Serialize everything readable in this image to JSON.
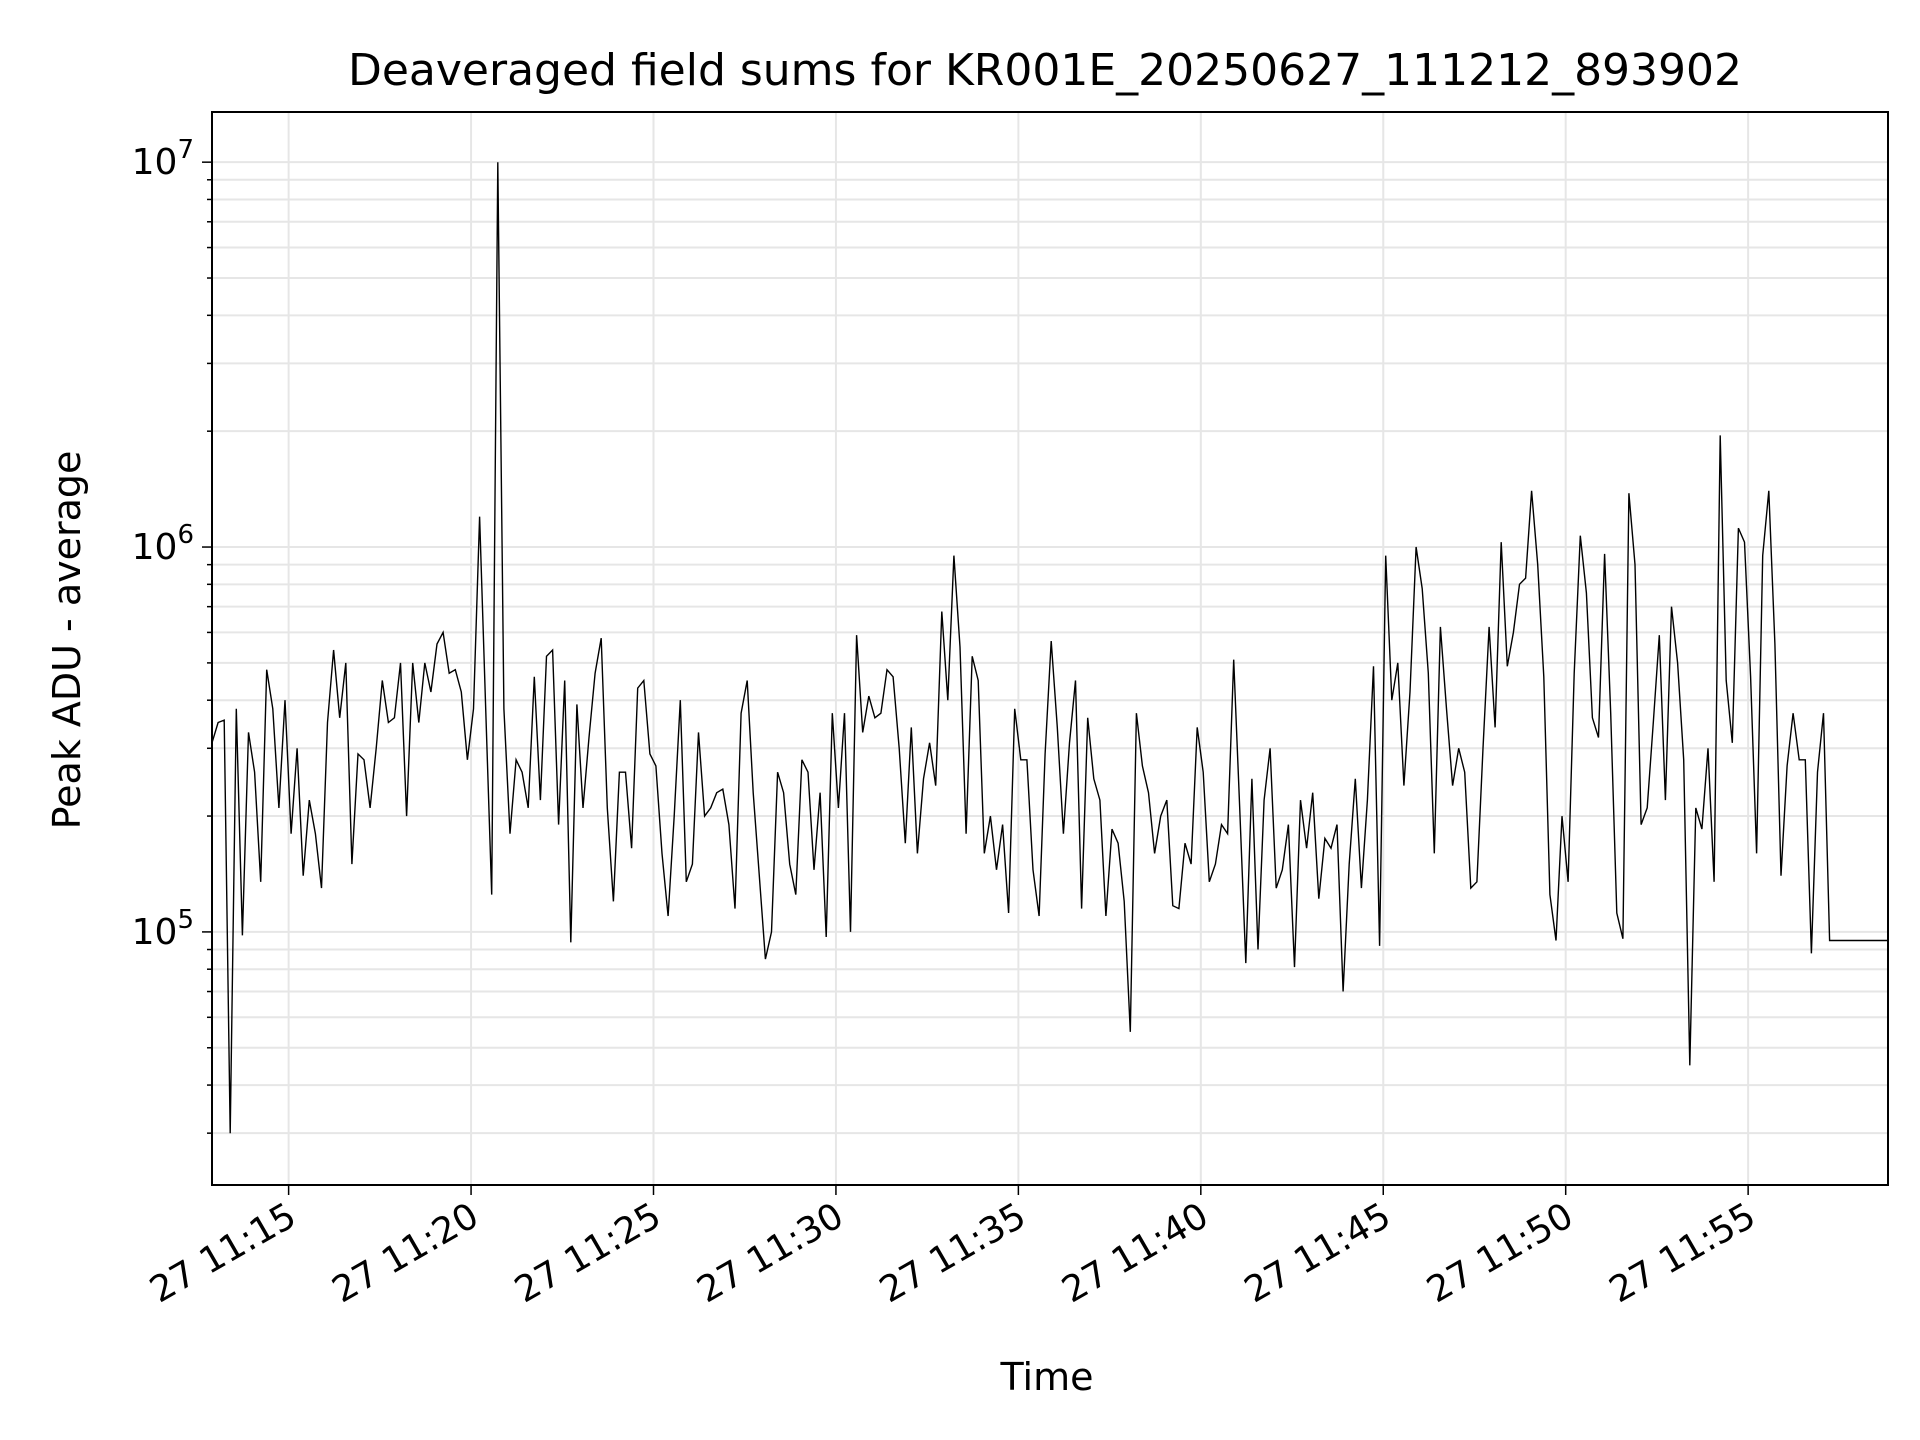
{
  "chart_data": {
    "type": "line",
    "title": "Deaveraged field sums for KR001E_20250627_111212_893902",
    "xlabel": "Time",
    "ylabel": "Peak ADU - average",
    "y_scale": "log",
    "ylim": [
      22000,
      13500000
    ],
    "xlim": [
      "2025-06-27 11:12:54",
      "2025-06-27 11:58:50"
    ],
    "grid": true,
    "line_color": "#000000",
    "grid_color": "#e6e6e6",
    "x_ticks": [
      {
        "time": "2025-06-27 11:15:00",
        "label": "27 11:15"
      },
      {
        "time": "2025-06-27 11:20:00",
        "label": "27 11:20"
      },
      {
        "time": "2025-06-27 11:25:00",
        "label": "27 11:25"
      },
      {
        "time": "2025-06-27 11:30:00",
        "label": "27 11:30"
      },
      {
        "time": "2025-06-27 11:35:00",
        "label": "27 11:35"
      },
      {
        "time": "2025-06-27 11:40:00",
        "label": "27 11:40"
      },
      {
        "time": "2025-06-27 11:45:00",
        "label": "27 11:45"
      },
      {
        "time": "2025-06-27 11:50:00",
        "label": "27 11:50"
      },
      {
        "time": "2025-06-27 11:55:00",
        "label": "27 11:55"
      }
    ],
    "y_ticks": [
      {
        "value": 100000,
        "base": "10",
        "exp": "5"
      },
      {
        "value": 1000000,
        "base": "10",
        "exp": "6"
      },
      {
        "value": 10000000,
        "base": "10",
        "exp": "7"
      }
    ],
    "series": [
      {
        "x": [
          "2025-06-27 11:12:54",
          "2025-06-27 11:13:04",
          "2025-06-27 11:13:14",
          "2025-06-27 11:13:24",
          "2025-06-27 11:13:34",
          "2025-06-27 11:13:44",
          "2025-06-27 11:13:54",
          "2025-06-27 11:14:04",
          "2025-06-27 11:14:14",
          "2025-06-27 11:14:24",
          "2025-06-27 11:14:34",
          "2025-06-27 11:14:44",
          "2025-06-27 11:14:54",
          "2025-06-27 11:15:04",
          "2025-06-27 11:15:14",
          "2025-06-27 11:15:24",
          "2025-06-27 11:15:34",
          "2025-06-27 11:15:44",
          "2025-06-27 11:15:54",
          "2025-06-27 11:16:04",
          "2025-06-27 11:16:14",
          "2025-06-27 11:16:24",
          "2025-06-27 11:16:34",
          "2025-06-27 11:16:44",
          "2025-06-27 11:16:54",
          "2025-06-27 11:17:04",
          "2025-06-27 11:17:14",
          "2025-06-27 11:17:24",
          "2025-06-27 11:17:34",
          "2025-06-27 11:17:44",
          "2025-06-27 11:17:54",
          "2025-06-27 11:18:04",
          "2025-06-27 11:18:14",
          "2025-06-27 11:18:24",
          "2025-06-27 11:18:34",
          "2025-06-27 11:18:44",
          "2025-06-27 11:18:54",
          "2025-06-27 11:19:04",
          "2025-06-27 11:19:14",
          "2025-06-27 11:19:24",
          "2025-06-27 11:19:34",
          "2025-06-27 11:19:44",
          "2025-06-27 11:19:54",
          "2025-06-27 11:20:04",
          "2025-06-27 11:20:14",
          "2025-06-27 11:20:24",
          "2025-06-27 11:20:34",
          "2025-06-27 11:20:44",
          "2025-06-27 11:20:54",
          "2025-06-27 11:21:04",
          "2025-06-27 11:21:14",
          "2025-06-27 11:21:24",
          "2025-06-27 11:21:34",
          "2025-06-27 11:21:44",
          "2025-06-27 11:21:54",
          "2025-06-27 11:22:04",
          "2025-06-27 11:22:14",
          "2025-06-27 11:22:24",
          "2025-06-27 11:22:34",
          "2025-06-27 11:22:44",
          "2025-06-27 11:22:54",
          "2025-06-27 11:23:04",
          "2025-06-27 11:23:14",
          "2025-06-27 11:23:24",
          "2025-06-27 11:23:34",
          "2025-06-27 11:23:44",
          "2025-06-27 11:23:54",
          "2025-06-27 11:24:04",
          "2025-06-27 11:24:14",
          "2025-06-27 11:24:24",
          "2025-06-27 11:24:34",
          "2025-06-27 11:24:44",
          "2025-06-27 11:24:54",
          "2025-06-27 11:25:04",
          "2025-06-27 11:25:14",
          "2025-06-27 11:25:24",
          "2025-06-27 11:25:34",
          "2025-06-27 11:25:44",
          "2025-06-27 11:25:54",
          "2025-06-27 11:26:04",
          "2025-06-27 11:26:14",
          "2025-06-27 11:26:24",
          "2025-06-27 11:26:34",
          "2025-06-27 11:26:44",
          "2025-06-27 11:26:54",
          "2025-06-27 11:27:04",
          "2025-06-27 11:27:14",
          "2025-06-27 11:27:24",
          "2025-06-27 11:27:34",
          "2025-06-27 11:27:44",
          "2025-06-27 11:27:54",
          "2025-06-27 11:28:04",
          "2025-06-27 11:28:14",
          "2025-06-27 11:28:24",
          "2025-06-27 11:28:34",
          "2025-06-27 11:28:44",
          "2025-06-27 11:28:54",
          "2025-06-27 11:29:04",
          "2025-06-27 11:29:14",
          "2025-06-27 11:29:24",
          "2025-06-27 11:29:34",
          "2025-06-27 11:29:44",
          "2025-06-27 11:29:54",
          "2025-06-27 11:30:04",
          "2025-06-27 11:30:14",
          "2025-06-27 11:30:24",
          "2025-06-27 11:30:34",
          "2025-06-27 11:30:44",
          "2025-06-27 11:30:54",
          "2025-06-27 11:31:04",
          "2025-06-27 11:31:14",
          "2025-06-27 11:31:24",
          "2025-06-27 11:31:34",
          "2025-06-27 11:31:44",
          "2025-06-27 11:31:54",
          "2025-06-27 11:32:04",
          "2025-06-27 11:32:14",
          "2025-06-27 11:32:24",
          "2025-06-27 11:32:34",
          "2025-06-27 11:32:44",
          "2025-06-27 11:32:54",
          "2025-06-27 11:33:04",
          "2025-06-27 11:33:14",
          "2025-06-27 11:33:24",
          "2025-06-27 11:33:34",
          "2025-06-27 11:33:44",
          "2025-06-27 11:33:54",
          "2025-06-27 11:34:04",
          "2025-06-27 11:34:14",
          "2025-06-27 11:34:24",
          "2025-06-27 11:34:34",
          "2025-06-27 11:34:44",
          "2025-06-27 11:34:54",
          "2025-06-27 11:35:04",
          "2025-06-27 11:35:14",
          "2025-06-27 11:35:24",
          "2025-06-27 11:35:34",
          "2025-06-27 11:35:44",
          "2025-06-27 11:35:54",
          "2025-06-27 11:36:04",
          "2025-06-27 11:36:14",
          "2025-06-27 11:36:24",
          "2025-06-27 11:36:34",
          "2025-06-27 11:36:44",
          "2025-06-27 11:36:54",
          "2025-06-27 11:37:04",
          "2025-06-27 11:37:14",
          "2025-06-27 11:37:24",
          "2025-06-27 11:37:34",
          "2025-06-27 11:37:44",
          "2025-06-27 11:37:54",
          "2025-06-27 11:38:04",
          "2025-06-27 11:38:14",
          "2025-06-27 11:38:24",
          "2025-06-27 11:38:34",
          "2025-06-27 11:38:44",
          "2025-06-27 11:38:54",
          "2025-06-27 11:39:04",
          "2025-06-27 11:39:14",
          "2025-06-27 11:39:24",
          "2025-06-27 11:39:34",
          "2025-06-27 11:39:44",
          "2025-06-27 11:39:54",
          "2025-06-27 11:40:04",
          "2025-06-27 11:40:14",
          "2025-06-27 11:40:24",
          "2025-06-27 11:40:34",
          "2025-06-27 11:40:44",
          "2025-06-27 11:40:54",
          "2025-06-27 11:41:04",
          "2025-06-27 11:41:14",
          "2025-06-27 11:41:24",
          "2025-06-27 11:41:34",
          "2025-06-27 11:41:44",
          "2025-06-27 11:41:54",
          "2025-06-27 11:42:04",
          "2025-06-27 11:42:14",
          "2025-06-27 11:42:24",
          "2025-06-27 11:42:34",
          "2025-06-27 11:42:44",
          "2025-06-27 11:42:54",
          "2025-06-27 11:43:04",
          "2025-06-27 11:43:14",
          "2025-06-27 11:43:24",
          "2025-06-27 11:43:34",
          "2025-06-27 11:43:44",
          "2025-06-27 11:43:54",
          "2025-06-27 11:44:04",
          "2025-06-27 11:44:14",
          "2025-06-27 11:44:24",
          "2025-06-27 11:44:34",
          "2025-06-27 11:44:44",
          "2025-06-27 11:44:54",
          "2025-06-27 11:45:04",
          "2025-06-27 11:45:14",
          "2025-06-27 11:45:24",
          "2025-06-27 11:45:34",
          "2025-06-27 11:45:44",
          "2025-06-27 11:45:54",
          "2025-06-27 11:46:04",
          "2025-06-27 11:46:14",
          "2025-06-27 11:46:24",
          "2025-06-27 11:46:34",
          "2025-06-27 11:46:44",
          "2025-06-27 11:46:54",
          "2025-06-27 11:47:04",
          "2025-06-27 11:47:14",
          "2025-06-27 11:47:24",
          "2025-06-27 11:47:34",
          "2025-06-27 11:47:44",
          "2025-06-27 11:47:54",
          "2025-06-27 11:48:04",
          "2025-06-27 11:48:14",
          "2025-06-27 11:48:24",
          "2025-06-27 11:48:34",
          "2025-06-27 11:48:44",
          "2025-06-27 11:48:54",
          "2025-06-27 11:49:04",
          "2025-06-27 11:49:14",
          "2025-06-27 11:49:24",
          "2025-06-27 11:49:34",
          "2025-06-27 11:49:44",
          "2025-06-27 11:49:54",
          "2025-06-27 11:50:04",
          "2025-06-27 11:50:14",
          "2025-06-27 11:50:24",
          "2025-06-27 11:50:34",
          "2025-06-27 11:50:44",
          "2025-06-27 11:50:54",
          "2025-06-27 11:51:04",
          "2025-06-27 11:51:14",
          "2025-06-27 11:51:24",
          "2025-06-27 11:51:34",
          "2025-06-27 11:51:44",
          "2025-06-27 11:51:54",
          "2025-06-27 11:52:04",
          "2025-06-27 11:52:14",
          "2025-06-27 11:52:24",
          "2025-06-27 11:52:34",
          "2025-06-27 11:52:44",
          "2025-06-27 11:52:54",
          "2025-06-27 11:53:04",
          "2025-06-27 11:53:14",
          "2025-06-27 11:53:24",
          "2025-06-27 11:53:34",
          "2025-06-27 11:53:44",
          "2025-06-27 11:53:54",
          "2025-06-27 11:54:04",
          "2025-06-27 11:54:14",
          "2025-06-27 11:54:24",
          "2025-06-27 11:54:34",
          "2025-06-27 11:54:44",
          "2025-06-27 11:54:54",
          "2025-06-27 11:55:04",
          "2025-06-27 11:55:14",
          "2025-06-27 11:55:24",
          "2025-06-27 11:55:34",
          "2025-06-27 11:55:44",
          "2025-06-27 11:55:54",
          "2025-06-27 11:56:04",
          "2025-06-27 11:56:14",
          "2025-06-27 11:56:24",
          "2025-06-27 11:56:34",
          "2025-06-27 11:56:44",
          "2025-06-27 11:56:54",
          "2025-06-27 11:57:04",
          "2025-06-27 11:57:14",
          "2025-06-27 11:57:24",
          "2025-06-27 11:57:34",
          "2025-06-27 11:57:44",
          "2025-06-27 11:57:54",
          "2025-06-27 11:58:04",
          "2025-06-27 11:58:14",
          "2025-06-27 11:58:24",
          "2025-06-27 11:58:34",
          "2025-06-27 11:58:44",
          "2025-06-27 11:58:50"
        ],
        "y": [
          310000,
          350000,
          355000,
          30000,
          380000,
          98000,
          330000,
          260000,
          135000,
          480000,
          380000,
          210000,
          400000,
          180000,
          300000,
          140000,
          220000,
          180000,
          130000,
          350000,
          540000,
          360000,
          500000,
          150000,
          290000,
          280000,
          210000,
          300000,
          450000,
          350000,
          360000,
          500000,
          200000,
          500000,
          350000,
          500000,
          420000,
          560000,
          600000,
          470000,
          480000,
          420000,
          280000,
          380000,
          1200000,
          380000,
          125000,
          10000000,
          380000,
          180000,
          280000,
          260000,
          210000,
          460000,
          220000,
          520000,
          540000,
          190000,
          450000,
          94000,
          390000,
          210000,
          320000,
          470000,
          580000,
          210000,
          120000,
          260000,
          260000,
          165000,
          430000,
          450000,
          290000,
          270000,
          160000,
          110000,
          200000,
          400000,
          135000,
          150000,
          330000,
          200000,
          210000,
          230000,
          235000,
          190000,
          115000,
          370000,
          450000,
          230000,
          140000,
          85000,
          100000,
          260000,
          230000,
          150000,
          125000,
          280000,
          260000,
          145000,
          230000,
          97000,
          370000,
          210000,
          370000,
          100000,
          590000,
          330000,
          410000,
          360000,
          370000,
          480000,
          460000,
          300000,
          170000,
          340000,
          160000,
          250000,
          310000,
          240000,
          680000,
          400000,
          950000,
          550000,
          180000,
          520000,
          450000,
          160000,
          200000,
          145000,
          190000,
          112000,
          380000,
          280000,
          280000,
          145000,
          110000,
          290000,
          570000,
          340000,
          180000,
          310000,
          450000,
          115000,
          360000,
          250000,
          220000,
          110000,
          185000,
          170000,
          120000,
          55000,
          370000,
          270000,
          230000,
          160000,
          200000,
          220000,
          117000,
          115000,
          170000,
          150000,
          340000,
          260000,
          135000,
          150000,
          190000,
          180000,
          510000,
          210000,
          83000,
          250000,
          90000,
          220000,
          300000,
          130000,
          145000,
          190000,
          81000,
          220000,
          165000,
          230000,
          122000,
          175000,
          165000,
          190000,
          70000,
          150000,
          250000,
          130000,
          220000,
          490000,
          92000,
          950000,
          400000,
          500000,
          240000,
          420000,
          1000000,
          780000,
          470000,
          160000,
          620000,
          380000,
          240000,
          300000,
          260000,
          130000,
          135000,
          300000,
          620000,
          340000,
          1030000,
          490000,
          600000,
          800000,
          830000,
          1400000,
          900000,
          460000,
          125000,
          95000,
          200000,
          135000,
          470000,
          1070000,
          760000,
          360000,
          320000,
          960000,
          370000,
          112000,
          96000,
          1380000,
          900000,
          190000,
          210000,
          350000,
          590000,
          220000,
          700000,
          500000,
          280000,
          45000,
          210000,
          185000,
          300000,
          135000,
          1950000,
          450000,
          310000,
          1120000,
          1030000,
          460000,
          160000,
          950000,
          1400000,
          560000,
          140000,
          270000,
          370000,
          280000,
          280000,
          88000,
          260000,
          370000,
          95000,
          95000,
          95000,
          95000,
          95000,
          95000,
          95000,
          95000,
          95000,
          95000,
          95000
        ]
      }
    ]
  }
}
